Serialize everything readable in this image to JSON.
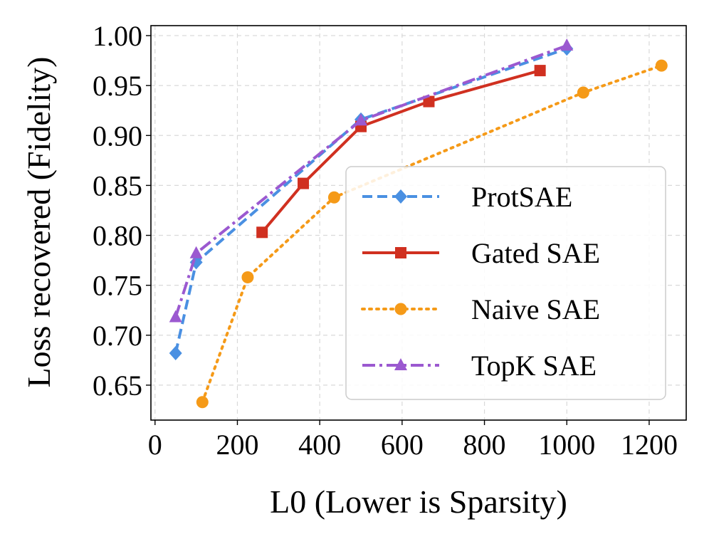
{
  "chart_data": {
    "type": "line",
    "title": "",
    "xlabel": "L0 (Lower is Sparsity)",
    "ylabel": "Loss recovered (Fidelity)",
    "xlim": [
      -10,
      1290
    ],
    "ylim": [
      0.615,
      1.01
    ],
    "xticks": [
      0,
      200,
      400,
      600,
      800,
      1000,
      1200
    ],
    "xtick_labels": [
      "0",
      "200",
      "400",
      "600",
      "800",
      "1000",
      "1200"
    ],
    "yticks": [
      0.65,
      0.7,
      0.75,
      0.8,
      0.85,
      0.9,
      0.95,
      1.0
    ],
    "ytick_labels": [
      "0.65",
      "0.70",
      "0.75",
      "0.80",
      "0.85",
      "0.90",
      "0.95",
      "1.00"
    ],
    "grid": true,
    "legend_position": "center-right",
    "series": [
      {
        "name": "ProtSAE",
        "color": "#4a90e2",
        "linestyle": "dashed",
        "marker": "diamond",
        "x": [
          50,
          100,
          500,
          1000
        ],
        "y": [
          0.682,
          0.773,
          0.916,
          0.987
        ]
      },
      {
        "name": "Gated SAE",
        "color": "#d03020",
        "linestyle": "solid",
        "marker": "square",
        "x": [
          260,
          360,
          500,
          665,
          935
        ],
        "y": [
          0.803,
          0.852,
          0.909,
          0.934,
          0.965
        ]
      },
      {
        "name": "Naive SAE",
        "color": "#f59a18",
        "linestyle": "dotted",
        "marker": "circle",
        "x": [
          115,
          225,
          435,
          1040,
          1230
        ],
        "y": [
          0.633,
          0.758,
          0.838,
          0.943,
          0.97
        ]
      },
      {
        "name": "TopK SAE",
        "color": "#9b59d0",
        "linestyle": "dashdot",
        "marker": "triangle",
        "x": [
          50,
          100,
          500,
          1000
        ],
        "y": [
          0.718,
          0.782,
          0.915,
          0.99
        ]
      }
    ]
  }
}
